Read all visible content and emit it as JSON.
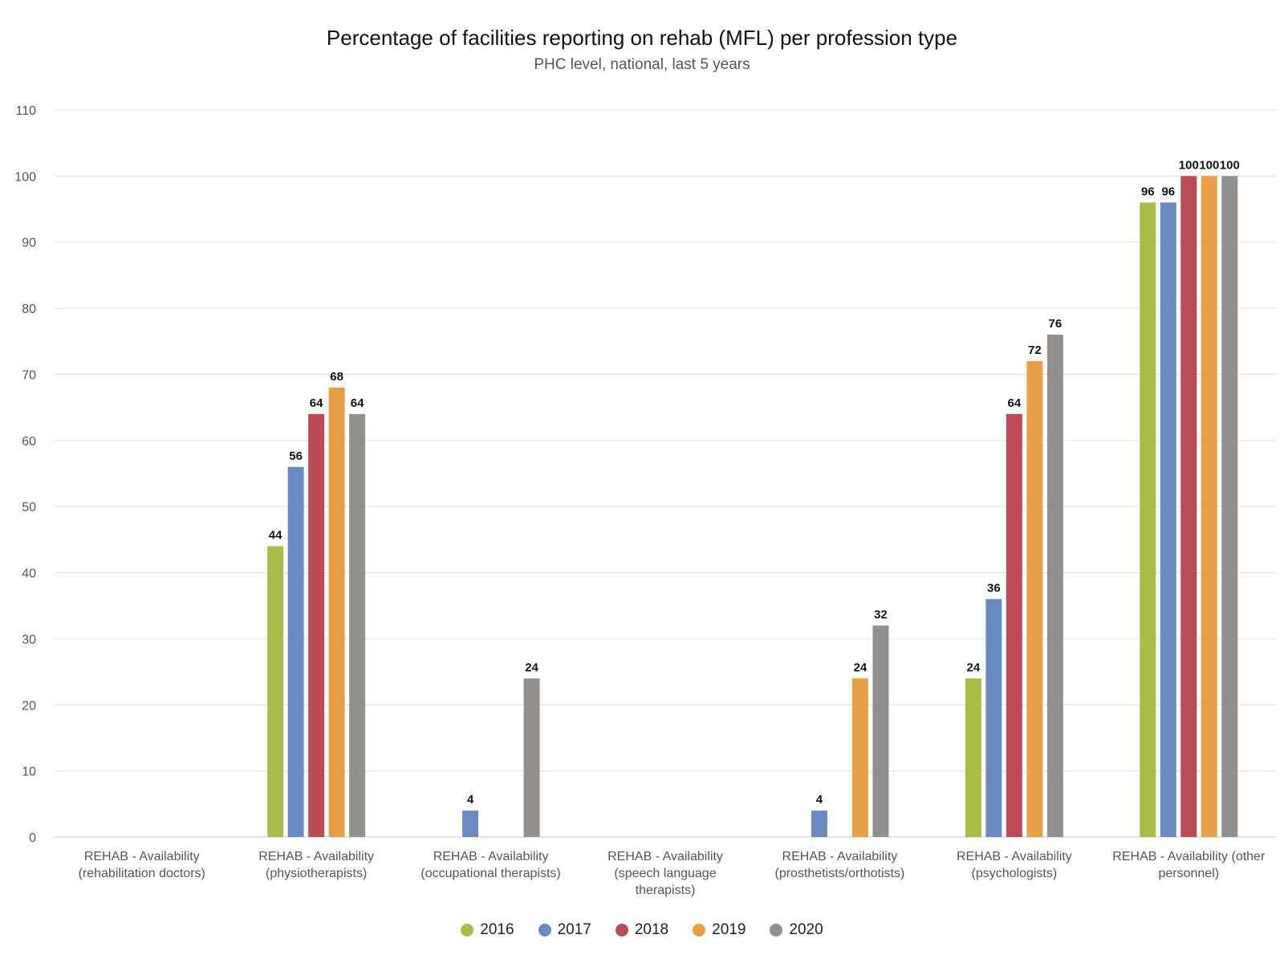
{
  "chart_data": {
    "type": "bar",
    "title": "Percentage of facilities reporting on rehab (MFL) per profession type",
    "subtitle": "PHC level, national, last 5 years",
    "xlabel": "",
    "ylabel": "",
    "ylim": [
      0,
      110
    ],
    "yticks": [
      0,
      10,
      20,
      30,
      40,
      50,
      60,
      70,
      80,
      90,
      100,
      110
    ],
    "grid": true,
    "legend_position": "bottom-center",
    "categories": [
      [
        "REHAB - Availability",
        "(rehabilitation doctors)"
      ],
      [
        "REHAB - Availability",
        "(physiotherapists)"
      ],
      [
        "REHAB - Availability",
        "(occupational therapists)"
      ],
      [
        "REHAB - Availability",
        "(speech language",
        "therapists)"
      ],
      [
        "REHAB - Availability",
        "(prosthetists/orthotists)"
      ],
      [
        "REHAB - Availability",
        "(psychologists)"
      ],
      [
        "REHAB - Availability (other",
        "personnel)"
      ]
    ],
    "series": [
      {
        "name": "2016",
        "color": "#a9bd46",
        "values": [
          null,
          44,
          null,
          null,
          null,
          24,
          96
        ]
      },
      {
        "name": "2017",
        "color": "#6a8bbf",
        "values": [
          null,
          56,
          4,
          null,
          4,
          36,
          96
        ]
      },
      {
        "name": "2018",
        "color": "#bd4a57",
        "values": [
          null,
          64,
          null,
          null,
          null,
          64,
          100
        ]
      },
      {
        "name": "2019",
        "color": "#e89f46",
        "values": [
          null,
          68,
          null,
          null,
          24,
          72,
          100
        ]
      },
      {
        "name": "2020",
        "color": "#938f8d",
        "values": [
          null,
          64,
          24,
          null,
          32,
          76,
          100
        ]
      }
    ]
  }
}
